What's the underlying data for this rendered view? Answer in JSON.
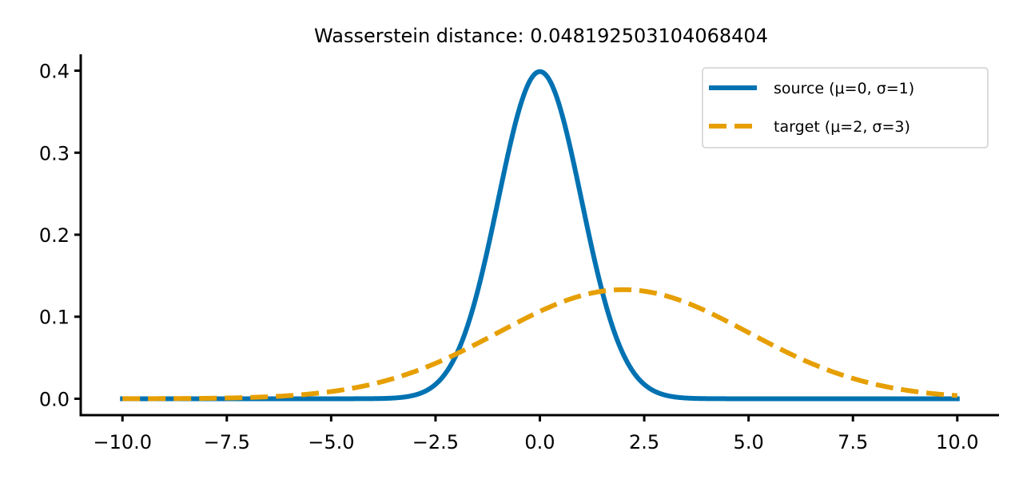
{
  "chart_data": {
    "type": "line",
    "title": "Wasserstein distance: 0.048192503104068404",
    "xlabel": "",
    "ylabel": "",
    "xlim": [
      -11,
      11
    ],
    "ylim": [
      -0.02,
      0.42
    ],
    "x_ticks": [
      -10,
      -7.5,
      -5,
      -2.5,
      0,
      2.5,
      5,
      7.5,
      10
    ],
    "x_tick_labels": [
      "−10.0",
      "−7.5",
      "−5.0",
      "−2.5",
      "0.0",
      "2.5",
      "5.0",
      "7.5",
      "10.0"
    ],
    "y_ticks": [
      0,
      0.1,
      0.2,
      0.3,
      0.4
    ],
    "y_tick_labels": [
      "0.0",
      "0.1",
      "0.2",
      "0.3",
      "0.4"
    ],
    "grid": false,
    "legend_position": "top-right",
    "x": [
      -10,
      -9.5,
      -9,
      -8.5,
      -8,
      -7.5,
      -7,
      -6.5,
      -6,
      -5.5,
      -5,
      -4.5,
      -4,
      -3.5,
      -3,
      -2.5,
      -2,
      -1.5,
      -1,
      -0.5,
      0,
      0.5,
      1,
      1.5,
      2,
      2.5,
      3,
      3.5,
      4,
      4.5,
      5,
      5.5,
      6,
      6.5,
      7,
      7.5,
      8,
      8.5,
      9,
      9.5,
      10
    ],
    "series": [
      {
        "name": "source (μ=0, σ=1)",
        "color": "#0072b2",
        "style": "solid",
        "values": [
          0,
          0,
          0,
          0,
          0,
          0,
          0,
          0,
          0,
          0,
          0,
          0,
          0.0001,
          0.0009,
          0.0044,
          0.0175,
          0.054,
          0.1295,
          0.242,
          0.3521,
          0.3989,
          0.3521,
          0.242,
          0.1295,
          0.054,
          0.0175,
          0.0044,
          0.0009,
          0.0001,
          0,
          0,
          0,
          0,
          0,
          0,
          0,
          0,
          0,
          0,
          0,
          0
        ]
      },
      {
        "name": "target (μ=2, σ=3)",
        "color": "#e69f00",
        "style": "dashed",
        "values": [
          0.0004,
          0.0006,
          0.0009,
          0.0014,
          0.0022,
          0.0032,
          0.0046,
          0.0066,
          0.0092,
          0.0126,
          0.0169,
          0.0222,
          0.0286,
          0.0362,
          0.0448,
          0.0544,
          0.0649,
          0.076,
          0.0874,
          0.0986,
          0.1093,
          0.1191,
          0.1258,
          0.1311,
          0.133,
          0.1311,
          0.1258,
          0.1191,
          0.1093,
          0.0986,
          0.0874,
          0.076,
          0.0649,
          0.0544,
          0.0448,
          0.0362,
          0.0286,
          0.0222,
          0.0169,
          0.0126,
          0.0092
        ]
      }
    ]
  }
}
